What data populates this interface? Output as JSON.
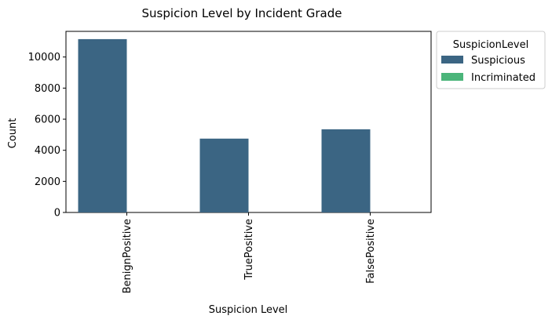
{
  "chart_data": {
    "type": "bar",
    "title": "Suspicion Level by Incident Grade",
    "xlabel": "Suspicion Level",
    "ylabel": "Count",
    "categories": [
      "BenignPositive",
      "TruePositive",
      "FalsePositive"
    ],
    "series": [
      {
        "name": "Suspicious",
        "values": [
          11150,
          4750,
          5350
        ],
        "color": "#3b6583"
      },
      {
        "name": "Incriminated",
        "values": [
          0,
          0,
          0
        ],
        "color": "#4bb57a"
      }
    ],
    "ylim": [
      0,
      11650
    ],
    "yticks": [
      0,
      2000,
      4000,
      6000,
      8000,
      10000
    ],
    "ytick_labels": [
      "0",
      "2000",
      "4000",
      "6000",
      "8000",
      "10000"
    ],
    "grid": false,
    "legend": {
      "title": "SuspicionLevel",
      "placement": "outside-top-right"
    }
  }
}
